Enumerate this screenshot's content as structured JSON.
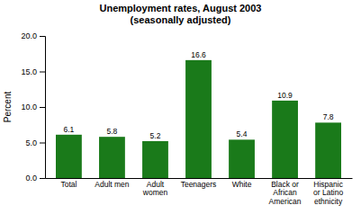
{
  "chart_data": {
    "type": "bar",
    "title": "Unemployment rates, August 2003\n(seasonally adjusted)",
    "categories": [
      "Total",
      "Adult men",
      "Adult\nwomen",
      "Teenagers",
      "White",
      "Black or\nAfrican\nAmerican",
      "Hispanic\nor Latino\nethnicity"
    ],
    "values": [
      6.1,
      5.8,
      5.2,
      16.6,
      5.4,
      10.9,
      7.8
    ],
    "color": "#1a7a1a",
    "ylabel": "Percent",
    "ylim": [
      0.0,
      20.0
    ],
    "yticks": [
      {
        "value": 0.0,
        "label": "0.0"
      },
      {
        "value": 5.0,
        "label": "5.0"
      },
      {
        "value": 10.0,
        "label": "10.0"
      },
      {
        "value": 15.0,
        "label": "15.0"
      },
      {
        "value": 20.0,
        "label": "20.0"
      }
    ],
    "data_labels": true
  }
}
